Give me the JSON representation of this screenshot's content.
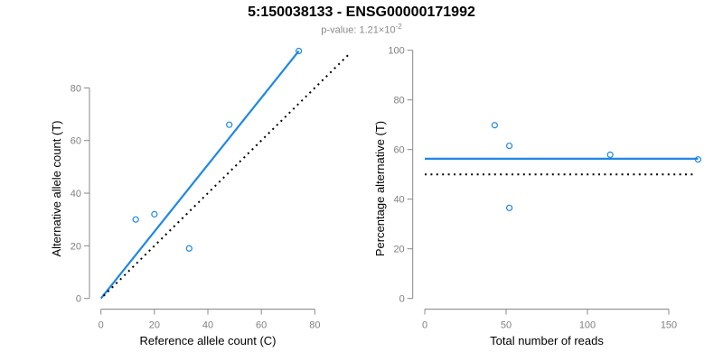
{
  "header": {
    "title": "5:150038133 - ENSG00000171992",
    "subtitle_prefix": "p-value: 1.21×10",
    "subtitle_exponent": "-2"
  },
  "colors": {
    "accent_blue": "#1E87E5",
    "dotted_black": "#000000",
    "axis_gray": "#888888",
    "tick_label_gray": "#808080",
    "label_black": "#000000",
    "subtitle_gray": "#8A8A8A",
    "background": "#FFFFFF"
  },
  "chart_data": [
    {
      "name": "allele-counts-scatter",
      "type": "scatter",
      "title": "",
      "xlabel": "Reference allele count (C)",
      "ylabel": "Alternative allele count (T)",
      "xticks": [
        0,
        20,
        40,
        60,
        80
      ],
      "yticks": [
        0,
        20,
        40,
        60,
        80
      ],
      "xlim": [
        0,
        95
      ],
      "ylim": [
        0,
        95
      ],
      "grid": false,
      "legend": null,
      "marker": "open-circle",
      "points": [
        [
          13,
          30
        ],
        [
          20,
          32
        ],
        [
          33,
          19
        ],
        [
          48,
          66
        ],
        [
          74,
          94
        ]
      ],
      "lines": [
        {
          "name": "fit-line",
          "x1": 0,
          "y1": 0,
          "x2": 74,
          "y2": 94,
          "style": "solid",
          "color": "blue"
        },
        {
          "name": "identity-line",
          "x1": 1,
          "y1": 1,
          "x2": 93,
          "y2": 93,
          "style": "dotted",
          "color": "black"
        }
      ]
    },
    {
      "name": "percentage-scatter",
      "type": "scatter",
      "title": "",
      "xlabel": "Total number of reads",
      "ylabel": "Percentage alternative (T)",
      "xticks": [
        0,
        50,
        100,
        150
      ],
      "yticks": [
        0,
        20,
        40,
        60,
        80,
        100
      ],
      "xlim": [
        0,
        172
      ],
      "ylim": [
        0,
        100
      ],
      "grid": false,
      "legend": null,
      "marker": "open-circle",
      "points": [
        [
          43,
          69.8
        ],
        [
          52,
          61.5
        ],
        [
          52,
          36.5
        ],
        [
          114,
          57.9
        ],
        [
          168,
          56
        ]
      ],
      "lines": [
        {
          "name": "mean-line",
          "x1": 0,
          "y1": 56.3,
          "x2": 168,
          "y2": 56.3,
          "style": "solid",
          "color": "blue"
        },
        {
          "name": "expected-50pct-line",
          "x1": 0,
          "y1": 50,
          "x2": 166,
          "y2": 50,
          "style": "dotted",
          "color": "black"
        }
      ]
    }
  ]
}
